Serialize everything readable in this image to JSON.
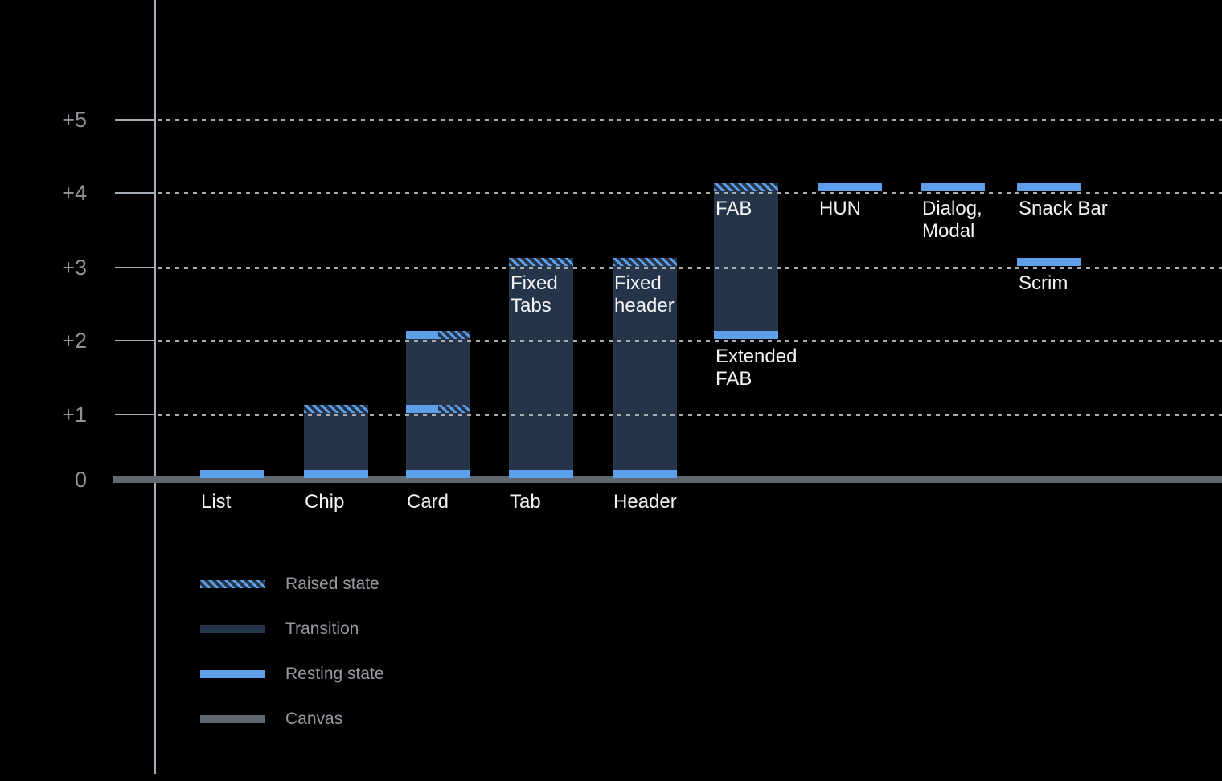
{
  "chart_data": {
    "type": "bar",
    "title": "",
    "background": "#000000",
    "grid": "dotted horizontal lines at each elevation level",
    "legend_position": "bottom-left",
    "y_axis": {
      "tick_labels": [
        "0",
        "+1",
        "+2",
        "+3",
        "+4",
        "+5"
      ],
      "range": [
        0,
        5
      ]
    },
    "colors": {
      "resting": "#5d9fe8",
      "transition": "#253449",
      "canvas": "#5f6770",
      "grid": "#a6adb5",
      "tick_text": "#8f9398",
      "bar_label": "#f2f4f5",
      "legend_text": "#969ba1"
    },
    "legend": [
      {
        "key": "raised",
        "label": "Raised state"
      },
      {
        "key": "transition",
        "label": "Transition"
      },
      {
        "key": "resting",
        "label": "Resting state"
      },
      {
        "key": "canvas",
        "label": "Canvas"
      }
    ],
    "components": [
      {
        "name": "list",
        "axis_label": "List",
        "column": 0,
        "resting_levels": [
          0
        ]
      },
      {
        "name": "chip",
        "axis_label": "Chip",
        "column": 1,
        "resting_levels": [
          0
        ],
        "transition": [
          0,
          1
        ],
        "raised_levels": [
          1
        ]
      },
      {
        "name": "card",
        "axis_label": "Card",
        "column": 2,
        "resting_levels": [
          0
        ],
        "transition": [
          0,
          2
        ],
        "split_levels": [
          1,
          2
        ]
      },
      {
        "name": "tab",
        "axis_label": "Tab",
        "column": 3,
        "resting_levels": [
          0
        ],
        "transition": [
          0,
          3
        ],
        "raised_levels": [
          3
        ],
        "captions": [
          {
            "lines": [
              "Fixed",
              "Tabs"
            ],
            "level": 3
          }
        ]
      },
      {
        "name": "header",
        "axis_label": "Header",
        "column": 4,
        "resting_levels": [
          0
        ],
        "transition": [
          0,
          3
        ],
        "raised_levels": [
          3
        ],
        "captions": [
          {
            "lines": [
              "Fixed",
              "header"
            ],
            "level": 3
          }
        ]
      },
      {
        "name": "fab",
        "axis_label": null,
        "column": 5,
        "resting_levels": [
          2
        ],
        "transition": [
          2,
          4
        ],
        "raised_levels": [
          4
        ],
        "captions": [
          {
            "lines": [
              "FAB"
            ],
            "level": 4
          },
          {
            "lines": [
              "Extended",
              "FAB"
            ],
            "level": 2
          }
        ]
      },
      {
        "name": "hun",
        "axis_label": null,
        "column": 6,
        "resting_levels": [
          4
        ],
        "captions": [
          {
            "lines": [
              "HUN"
            ],
            "level": 4
          }
        ]
      },
      {
        "name": "dialog-modal",
        "axis_label": null,
        "column": 7,
        "resting_levels": [
          4
        ],
        "captions": [
          {
            "lines": [
              "Dialog,",
              "Modal"
            ],
            "level": 4
          }
        ]
      },
      {
        "name": "snack-bar",
        "axis_label": null,
        "column": 8,
        "resting_levels": [
          4
        ],
        "captions": [
          {
            "lines": [
              "Snack Bar"
            ],
            "level": 4
          }
        ]
      },
      {
        "name": "scrim",
        "axis_label": null,
        "column": 8,
        "resting_levels": [
          3
        ],
        "captions": [
          {
            "lines": [
              "Scrim"
            ],
            "level": 3
          }
        ]
      }
    ]
  }
}
